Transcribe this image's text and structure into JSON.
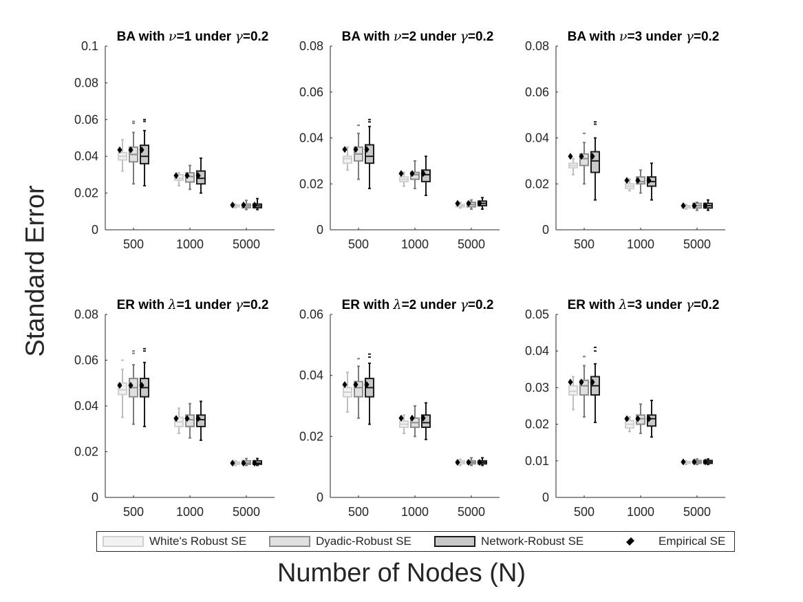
{
  "figure": {
    "ylabel": "Standard Error",
    "xlabel": "Number of Nodes (N)"
  },
  "legend": {
    "items": [
      {
        "label": "White's Robust SE",
        "fill": "#f2f2f2",
        "stroke": "#d0d0d0"
      },
      {
        "label": "Dyadic-Robust SE",
        "fill": "#e0e0e0",
        "stroke": "#8c8c8c"
      },
      {
        "label": "Network-Robust SE",
        "fill": "#c8c8c8",
        "stroke": "#1a1a1a"
      },
      {
        "label": "Empirical SE",
        "marker": "diamond"
      }
    ]
  },
  "chart_data": [
    {
      "type": "box",
      "title_prefix": "BA with ",
      "title_symbol": "ν",
      "title_suffix": "=1 under ",
      "title_gamma": "γ",
      "title_end": "=0.2",
      "categories": [
        "500",
        "1000",
        "5000"
      ],
      "ylim": [
        0,
        0.1
      ],
      "yticks": [
        0,
        0.02,
        0.04,
        0.06,
        0.08,
        0.1
      ],
      "ytick_labels": [
        "0",
        "0.02",
        "0.04",
        "0.06",
        "0.08",
        "0.1"
      ],
      "series": [
        {
          "name": "White's Robust SE",
          "stats": [
            [
              0.032,
              0.038,
              0.04,
              0.042,
              0.049
            ],
            [
              0.024,
              0.027,
              0.028,
              0.03,
              0.031
            ],
            [
              0.012,
              0.0125,
              0.013,
              0.0135,
              0.014
            ]
          ]
        },
        {
          "name": "Dyadic-Robust SE",
          "stats": [
            [
              0.025,
              0.037,
              0.041,
              0.045,
              0.053
            ],
            [
              0.022,
              0.026,
              0.029,
              0.031,
              0.035
            ],
            [
              0.011,
              0.012,
              0.013,
              0.014,
              0.016
            ]
          ]
        },
        {
          "name": "Network-Robust SE",
          "stats": [
            [
              0.024,
              0.036,
              0.04,
              0.046,
              0.054
            ],
            [
              0.02,
              0.025,
              0.028,
              0.032,
              0.039
            ],
            [
              0.011,
              0.012,
              0.013,
              0.014,
              0.017
            ]
          ]
        }
      ],
      "outliers": [
        [
          [],
          [
            0.058,
            0.059
          ],
          [
            0.059,
            0.06
          ]
        ],
        [
          [],
          [],
          []
        ],
        [
          [],
          [],
          []
        ]
      ],
      "empirical": [
        [
          0.0435,
          0.0435,
          0.0435
        ],
        [
          0.0295,
          0.0295,
          0.0295
        ],
        [
          0.0135,
          0.0135,
          0.0135
        ]
      ]
    },
    {
      "type": "box",
      "title_prefix": "BA with ",
      "title_symbol": "ν",
      "title_suffix": "=2 under ",
      "title_gamma": "γ",
      "title_end": "=0.2",
      "categories": [
        "500",
        "1000",
        "5000"
      ],
      "ylim": [
        0,
        0.08
      ],
      "yticks": [
        0,
        0.02,
        0.04,
        0.06,
        0.08
      ],
      "ytick_labels": [
        "0",
        "0.02",
        "0.04",
        "0.06",
        "0.08"
      ],
      "series": [
        {
          "name": "White's Robust SE",
          "stats": [
            [
              0.026,
              0.029,
              0.031,
              0.032,
              0.036
            ],
            [
              0.019,
              0.021,
              0.022,
              0.023,
              0.025
            ],
            [
              0.0095,
              0.01,
              0.0105,
              0.011,
              0.012
            ]
          ]
        },
        {
          "name": "Dyadic-Robust SE",
          "stats": [
            [
              0.022,
              0.03,
              0.033,
              0.036,
              0.042
            ],
            [
              0.018,
              0.022,
              0.024,
              0.025,
              0.03
            ],
            [
              0.009,
              0.01,
              0.011,
              0.012,
              0.013
            ]
          ]
        },
        {
          "name": "Network-Robust SE",
          "stats": [
            [
              0.018,
              0.029,
              0.032,
              0.037,
              0.045
            ],
            [
              0.015,
              0.021,
              0.024,
              0.026,
              0.032
            ],
            [
              0.009,
              0.0105,
              0.0115,
              0.0125,
              0.014
            ]
          ]
        }
      ],
      "outliers": [
        [
          [],
          [
            0.0455
          ],
          [
            0.047,
            0.048
          ]
        ],
        [
          [],
          [],
          []
        ],
        [
          [],
          [],
          []
        ]
      ],
      "empirical": [
        [
          0.035,
          0.035,
          0.035
        ],
        [
          0.0245,
          0.0245,
          0.0245
        ],
        [
          0.0115,
          0.0115,
          0.0115
        ]
      ]
    },
    {
      "type": "box",
      "title_prefix": "BA with ",
      "title_symbol": "ν",
      "title_suffix": "=3 under ",
      "title_gamma": "γ",
      "title_end": "=0.2",
      "categories": [
        "500",
        "1000",
        "5000"
      ],
      "ylim": [
        0,
        0.08
      ],
      "yticks": [
        0,
        0.02,
        0.04,
        0.06,
        0.08
      ],
      "ytick_labels": [
        "0",
        "0.02",
        "0.04",
        "0.06",
        "0.08"
      ],
      "series": [
        {
          "name": "White's Robust SE",
          "stats": [
            [
              0.024,
              0.027,
              0.028,
              0.029,
              0.031
            ],
            [
              0.017,
              0.018,
              0.019,
              0.02,
              0.022
            ],
            [
              0.009,
              0.0095,
              0.01,
              0.0105,
              0.011
            ]
          ]
        },
        {
          "name": "Dyadic-Robust SE",
          "stats": [
            [
              0.02,
              0.028,
              0.031,
              0.033,
              0.038
            ],
            [
              0.016,
              0.02,
              0.021,
              0.023,
              0.026
            ],
            [
              0.0085,
              0.0095,
              0.0105,
              0.0115,
              0.012
            ]
          ]
        },
        {
          "name": "Network-Robust SE",
          "stats": [
            [
              0.013,
              0.025,
              0.03,
              0.034,
              0.04
            ],
            [
              0.013,
              0.019,
              0.021,
              0.023,
              0.029
            ],
            [
              0.0085,
              0.0095,
              0.0105,
              0.0115,
              0.013
            ]
          ]
        }
      ],
      "outliers": [
        [
          [],
          [
            0.042
          ],
          [
            0.046,
            0.047
          ]
        ],
        [
          [],
          [],
          []
        ],
        [
          [],
          [],
          []
        ]
      ],
      "empirical": [
        [
          0.032,
          0.032,
          0.032
        ],
        [
          0.0215,
          0.0215,
          0.0215
        ],
        [
          0.0105,
          0.0105,
          0.0105
        ]
      ]
    },
    {
      "type": "box",
      "title_prefix": "ER with ",
      "title_symbol": "λ",
      "title_suffix": "=1 under ",
      "title_gamma": "γ",
      "title_end": "=0.2",
      "categories": [
        "500",
        "1000",
        "5000"
      ],
      "ylim": [
        0,
        0.08
      ],
      "yticks": [
        0,
        0.02,
        0.04,
        0.06,
        0.08
      ],
      "ytick_labels": [
        "0",
        "0.02",
        "0.04",
        "0.06",
        "0.08"
      ],
      "series": [
        {
          "name": "White's Robust SE",
          "stats": [
            [
              0.035,
              0.045,
              0.047,
              0.05,
              0.056
            ],
            [
              0.028,
              0.031,
              0.033,
              0.035,
              0.039
            ],
            [
              0.014,
              0.0145,
              0.015,
              0.0155,
              0.016
            ]
          ]
        },
        {
          "name": "Dyadic-Robust SE",
          "stats": [
            [
              0.032,
              0.044,
              0.048,
              0.052,
              0.058
            ],
            [
              0.026,
              0.031,
              0.034,
              0.036,
              0.041
            ],
            [
              0.014,
              0.0145,
              0.015,
              0.016,
              0.017
            ]
          ]
        },
        {
          "name": "Network-Robust SE",
          "stats": [
            [
              0.031,
              0.044,
              0.048,
              0.052,
              0.059
            ],
            [
              0.025,
              0.031,
              0.034,
              0.036,
              0.042
            ],
            [
              0.014,
              0.0145,
              0.015,
              0.016,
              0.017
            ]
          ]
        }
      ],
      "outliers": [
        [
          [
            0.06
          ],
          [
            0.063,
            0.064
          ],
          [
            0.064,
            0.065
          ]
        ],
        [
          [],
          [],
          []
        ],
        [
          [],
          [],
          []
        ]
      ],
      "empirical": [
        [
          0.049,
          0.049,
          0.049
        ],
        [
          0.0345,
          0.0345,
          0.0345
        ],
        [
          0.015,
          0.015,
          0.015
        ]
      ]
    },
    {
      "type": "box",
      "title_prefix": "ER with ",
      "title_symbol": "λ",
      "title_suffix": "=2 under ",
      "title_gamma": "γ",
      "title_end": "=0.2",
      "categories": [
        "500",
        "1000",
        "5000"
      ],
      "ylim": [
        0,
        0.06
      ],
      "yticks": [
        0,
        0.02,
        0.04,
        0.06
      ],
      "ytick_labels": [
        "0",
        "0.02",
        "0.04",
        "0.06"
      ],
      "series": [
        {
          "name": "White's Robust SE",
          "stats": [
            [
              0.028,
              0.033,
              0.0345,
              0.036,
              0.041
            ],
            [
              0.021,
              0.023,
              0.024,
              0.025,
              0.027
            ],
            [
              0.0105,
              0.011,
              0.0115,
              0.012,
              0.0125
            ]
          ]
        },
        {
          "name": "Dyadic-Robust SE",
          "stats": [
            [
              0.026,
              0.033,
              0.036,
              0.038,
              0.043
            ],
            [
              0.02,
              0.023,
              0.0245,
              0.026,
              0.03
            ],
            [
              0.0105,
              0.011,
              0.0115,
              0.012,
              0.013
            ]
          ]
        },
        {
          "name": "Network-Robust SE",
          "stats": [
            [
              0.024,
              0.033,
              0.036,
              0.039,
              0.044
            ],
            [
              0.019,
              0.023,
              0.0245,
              0.027,
              0.031
            ],
            [
              0.0105,
              0.011,
              0.0115,
              0.012,
              0.013
            ]
          ]
        }
      ],
      "outliers": [
        [
          [],
          [
            0.0455
          ],
          [
            0.046,
            0.047
          ]
        ],
        [
          [],
          [],
          []
        ],
        [
          [],
          [],
          []
        ]
      ],
      "empirical": [
        [
          0.037,
          0.037,
          0.037
        ],
        [
          0.026,
          0.026,
          0.026
        ],
        [
          0.0115,
          0.0115,
          0.0115
        ]
      ]
    },
    {
      "type": "box",
      "title_prefix": "ER with ",
      "title_symbol": "λ",
      "title_suffix": "=3 under ",
      "title_gamma": "γ",
      "title_end": "=0.2",
      "categories": [
        "500",
        "1000",
        "5000"
      ],
      "ylim": [
        0,
        0.05
      ],
      "yticks": [
        0,
        0.01,
        0.02,
        0.03,
        0.04,
        0.05
      ],
      "ytick_labels": [
        "0",
        "0.01",
        "0.02",
        "0.03",
        "0.04",
        "0.05"
      ],
      "series": [
        {
          "name": "White's Robust SE",
          "stats": [
            [
              0.024,
              0.028,
              0.029,
              0.0305,
              0.033
            ],
            [
              0.018,
              0.019,
              0.02,
              0.021,
              0.022
            ],
            [
              0.009,
              0.0093,
              0.0095,
              0.0098,
              0.01
            ]
          ]
        },
        {
          "name": "Dyadic-Robust SE",
          "stats": [
            [
              0.022,
              0.028,
              0.0305,
              0.032,
              0.036
            ],
            [
              0.0175,
              0.02,
              0.0215,
              0.0225,
              0.0255
            ],
            [
              0.009,
              0.0093,
              0.0097,
              0.0101,
              0.0105
            ]
          ]
        },
        {
          "name": "Network-Robust SE",
          "stats": [
            [
              0.0205,
              0.028,
              0.0305,
              0.033,
              0.0365
            ],
            [
              0.0165,
              0.0195,
              0.0215,
              0.0225,
              0.0265
            ],
            [
              0.009,
              0.0093,
              0.0097,
              0.0101,
              0.0105
            ]
          ]
        }
      ],
      "outliers": [
        [
          [],
          [
            0.0385
          ],
          [
            0.04,
            0.041
          ]
        ],
        [
          [],
          [],
          []
        ],
        [
          [],
          [],
          []
        ]
      ],
      "empirical": [
        [
          0.0315,
          0.0315,
          0.0315
        ],
        [
          0.0215,
          0.0215,
          0.0215
        ],
        [
          0.0097,
          0.0097,
          0.0097
        ]
      ]
    }
  ]
}
